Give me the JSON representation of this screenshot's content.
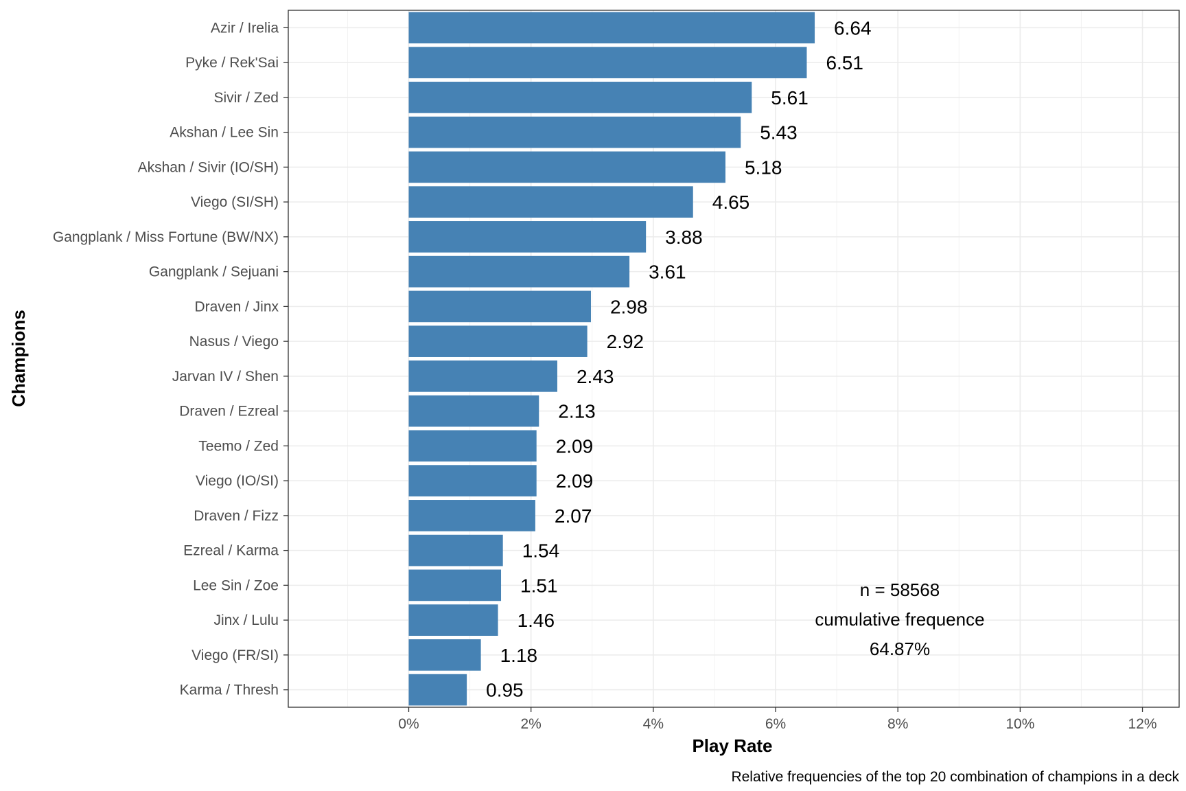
{
  "chart_data": {
    "type": "bar",
    "orientation": "horizontal",
    "categories": [
      "Azir / Irelia",
      "Pyke / Rek'Sai",
      "Sivir / Zed",
      "Akshan / Lee Sin",
      "Akshan / Sivir (IO/SH)",
      "Viego (SI/SH)",
      "Gangplank / Miss Fortune (BW/NX)",
      "Gangplank / Sejuani",
      "Draven / Jinx",
      "Nasus / Viego",
      "Jarvan IV / Shen",
      "Draven / Ezreal",
      "Teemo / Zed",
      "Viego (IO/SI)",
      "Draven / Fizz",
      "Ezreal / Karma",
      "Lee Sin / Zoe",
      "Jinx / Lulu",
      "Viego (FR/SI)",
      "Karma / Thresh"
    ],
    "values": [
      6.64,
      6.51,
      5.61,
      5.43,
      5.18,
      4.65,
      3.88,
      3.61,
      2.98,
      2.92,
      2.43,
      2.13,
      2.09,
      2.09,
      2.07,
      1.54,
      1.51,
      1.46,
      1.18,
      0.95
    ],
    "value_labels": [
      "6.64",
      "6.51",
      "5.61",
      "5.43",
      "5.18",
      "4.65",
      "3.88",
      "3.61",
      "2.98",
      "2.92",
      "2.43",
      "2.13",
      "2.09",
      "2.09",
      "2.07",
      "1.54",
      "1.51",
      "1.46",
      "1.18",
      "0.95"
    ],
    "xlabel": "Play Rate",
    "ylabel": "Champions",
    "xlim": [
      -1.97,
      12.6
    ],
    "x_ticks": [
      0,
      2,
      4,
      6,
      8,
      10,
      12
    ],
    "x_tick_labels": [
      "0%",
      "2%",
      "4%",
      "6%",
      "8%",
      "10%",
      "12%"
    ],
    "grid": true,
    "bar_color": "#4682b4",
    "annotation": [
      "n = 58568",
      "cumulative frequence",
      "64.87%"
    ],
    "caption": "Relative frequencies of the top 20 combination of champions in a deck"
  }
}
